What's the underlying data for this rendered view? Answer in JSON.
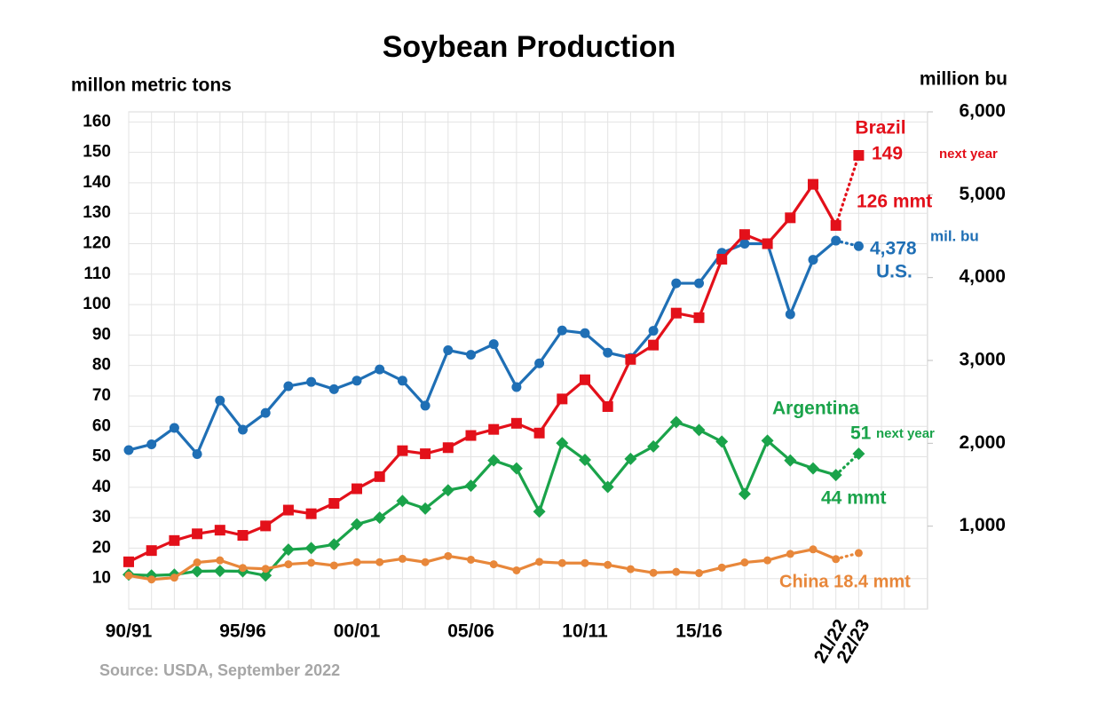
{
  "chart_data": {
    "type": "line",
    "title": "Soybean Production",
    "y_label": "millon metric tons",
    "y2_label": "million bu",
    "source": "Source: USDA, September 2022",
    "categories": [
      "90/91",
      null,
      null,
      null,
      null,
      "95/96",
      null,
      null,
      null,
      null,
      "00/01",
      null,
      null,
      null,
      null,
      "05/06",
      null,
      null,
      null,
      null,
      "10/11",
      null,
      null,
      null,
      null,
      "15/16",
      null,
      null,
      null,
      null,
      null,
      "21/22",
      "22/23"
    ],
    "ylim": [
      0,
      163.3
    ],
    "yticks": [
      10,
      20,
      30,
      40,
      50,
      60,
      70,
      80,
      90,
      100,
      110,
      120,
      130,
      140,
      150,
      160
    ],
    "y2lim": [
      0,
      6000
    ],
    "y2ticks": [
      {
        "value": 1000,
        "label": "1,000"
      },
      {
        "value": 2000,
        "label": "2,000"
      },
      {
        "value": 3000,
        "label": "3,000"
      },
      {
        "value": 4000,
        "label": "4,000"
      },
      {
        "value": 5000,
        "label": "5,000"
      },
      {
        "value": 6000,
        "label": "6,000"
      }
    ],
    "grid": true,
    "dotted_last_segment": true,
    "series": [
      {
        "name": "U.S.",
        "color": "#1f6fb5",
        "marker": "circle",
        "values": [
          52.2,
          54.1,
          59.5,
          50.9,
          68.5,
          58.9,
          64.4,
          73.2,
          74.6,
          72.2,
          75.0,
          78.7,
          75.0,
          66.8,
          85.0,
          83.5,
          87.0,
          72.9,
          80.7,
          91.5,
          90.6,
          84.2,
          82.5,
          91.4,
          107.0,
          107.0,
          117.0,
          120.0,
          120.0,
          96.8,
          114.7,
          121.0,
          119.2
        ]
      },
      {
        "name": "Brazil",
        "color": "#e3101a",
        "marker": "square",
        "values": [
          15.5,
          19.2,
          22.5,
          24.7,
          25.9,
          24.2,
          27.3,
          32.5,
          31.3,
          34.7,
          39.5,
          43.5,
          52.0,
          51.0,
          53.0,
          57.0,
          59.0,
          61.0,
          57.8,
          69.0,
          75.3,
          66.5,
          82.0,
          86.7,
          97.2,
          95.7,
          114.9,
          123.0,
          120.0,
          128.5,
          139.5,
          126,
          149
        ]
      },
      {
        "name": "Argentina",
        "color": "#1aa34a",
        "marker": "diamond",
        "values": [
          11.3,
          11.0,
          11.3,
          12.4,
          12.5,
          12.4,
          11.0,
          19.5,
          20.0,
          21.2,
          27.8,
          30.0,
          35.5,
          33.0,
          39.0,
          40.5,
          48.8,
          46.2,
          32.0,
          54.5,
          49.0,
          40.1,
          49.3,
          53.4,
          61.4,
          58.8,
          55.0,
          37.8,
          55.3,
          48.8,
          46.2,
          44,
          51
        ]
      },
      {
        "name": "China",
        "color": "#e8873a",
        "marker": "dot",
        "values": [
          11.0,
          9.7,
          10.3,
          15.3,
          16.0,
          13.5,
          13.2,
          14.7,
          15.2,
          14.3,
          15.4,
          15.4,
          16.5,
          15.4,
          17.4,
          16.2,
          14.7,
          12.7,
          15.5,
          15.1,
          15.1,
          14.5,
          13.1,
          11.9,
          12.2,
          11.8,
          13.6,
          15.3,
          16.0,
          18.1,
          19.6,
          16.4,
          18.4
        ]
      }
    ],
    "annotations": [
      {
        "text": "Brazil",
        "color": "#e3101a"
      },
      {
        "text": "149",
        "color": "#e3101a"
      },
      {
        "text": "next year",
        "color": "#e3101a"
      },
      {
        "text": "126 mmt",
        "color": "#e3101a"
      },
      {
        "text": "mil. bu",
        "color": "#1f6fb5"
      },
      {
        "text": "4,378",
        "color": "#1f6fb5"
      },
      {
        "text": "U.S.",
        "color": "#1f6fb5"
      },
      {
        "text": "Argentina",
        "color": "#1aa34a"
      },
      {
        "text": "51",
        "color": "#1aa34a"
      },
      {
        "text": "next year",
        "color": "#1aa34a"
      },
      {
        "text": "44 mmt",
        "color": "#1aa34a"
      },
      {
        "text": "China 18.4 mmt",
        "color": "#e8873a"
      }
    ]
  }
}
